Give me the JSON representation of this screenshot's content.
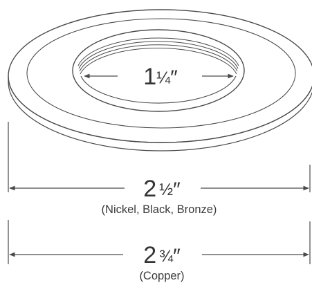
{
  "drawing": {
    "subject": "trim-ring",
    "colors": {
      "line": "#4a4a4a",
      "text": "#333333",
      "background": "#ffffff"
    }
  },
  "dimensions": {
    "inner": {
      "whole": "1",
      "fraction": "¼",
      "unit": "″"
    },
    "middle": {
      "whole": "2",
      "fraction": "½",
      "unit": "″",
      "note": "(Nickel, Black, Bronze)"
    },
    "outer": {
      "whole": "2",
      "fraction": "¾",
      "unit": "″",
      "note": "(Copper)"
    }
  }
}
